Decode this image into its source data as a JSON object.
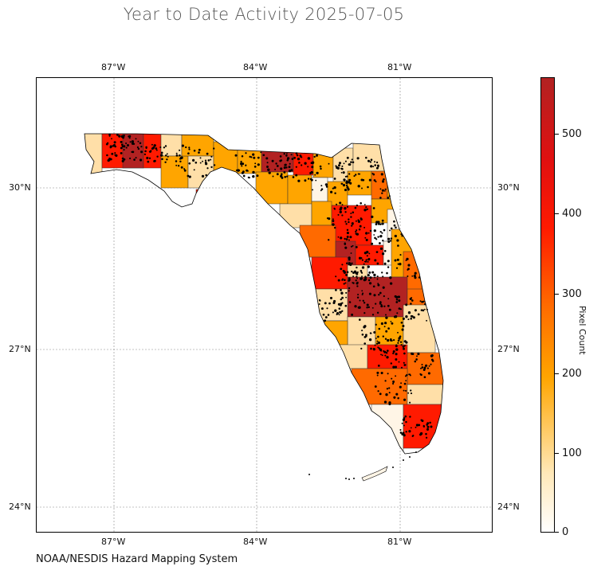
{
  "title": "Year to Date Activity 2025-07-05",
  "footer": "NOAA/NESDIS Hazard Mapping System",
  "longitude_labels": [
    "87°W",
    "84°W",
    "81°W"
  ],
  "latitude_labels": [
    "30°N",
    "27°N",
    "24°N"
  ],
  "colorbar": {
    "title": "Pixel Count",
    "ticks": [
      "0",
      "100",
      "200",
      "300",
      "400",
      "500"
    ],
    "colors": {
      "low": "#ffffff",
      "mid_low": "#ffd27a",
      "mid": "#ffa500",
      "mid_high": "#ff6a00",
      "high": "#ff1a00",
      "max": "#b22222"
    }
  },
  "map": {
    "region": "Florida counties",
    "grid": true,
    "county_fill_colors": [
      "#fff5e6",
      "#ffdfa8",
      "#ffa500",
      "#ff6a00",
      "#ff1a00",
      "#b22222"
    ],
    "point_color": "#000000"
  }
}
